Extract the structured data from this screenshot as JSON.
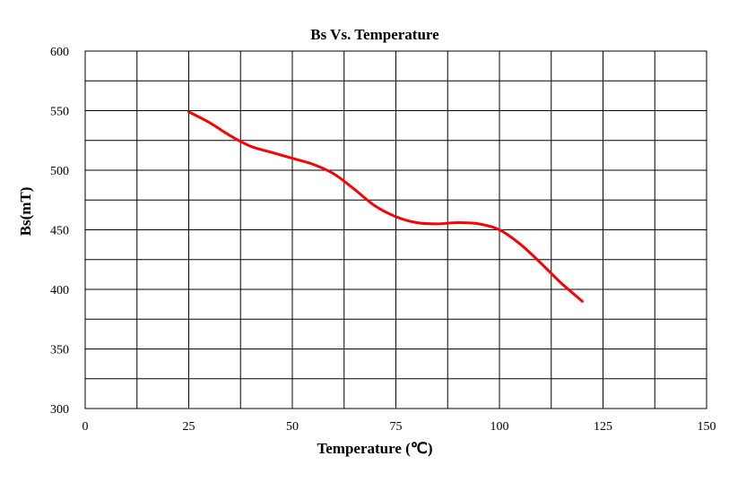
{
  "chart_data": {
    "type": "line",
    "title": "Bs Vs. Temperature",
    "xlabel": "Temperature (℃)",
    "ylabel": "Bs(mT)",
    "xlim": [
      0,
      150
    ],
    "ylim": [
      300,
      600
    ],
    "x_ticks": [
      0,
      25,
      50,
      75,
      100,
      125,
      150
    ],
    "y_ticks": [
      300,
      350,
      400,
      450,
      500,
      550,
      600
    ],
    "x_minor_step": 12.5,
    "y_minor_step": 25,
    "grid": true,
    "series": [
      {
        "color": "#ff0000",
        "x": [
          25,
          30,
          35,
          40,
          45,
          50,
          55,
          60,
          65,
          70,
          75,
          80,
          85,
          90,
          95,
          100,
          105,
          110,
          115,
          120
        ],
        "y": [
          549,
          540,
          529,
          520,
          515,
          510,
          505,
          497,
          484,
          470,
          461,
          456,
          455,
          456,
          455,
          450,
          438,
          422,
          405,
          390
        ]
      }
    ]
  }
}
